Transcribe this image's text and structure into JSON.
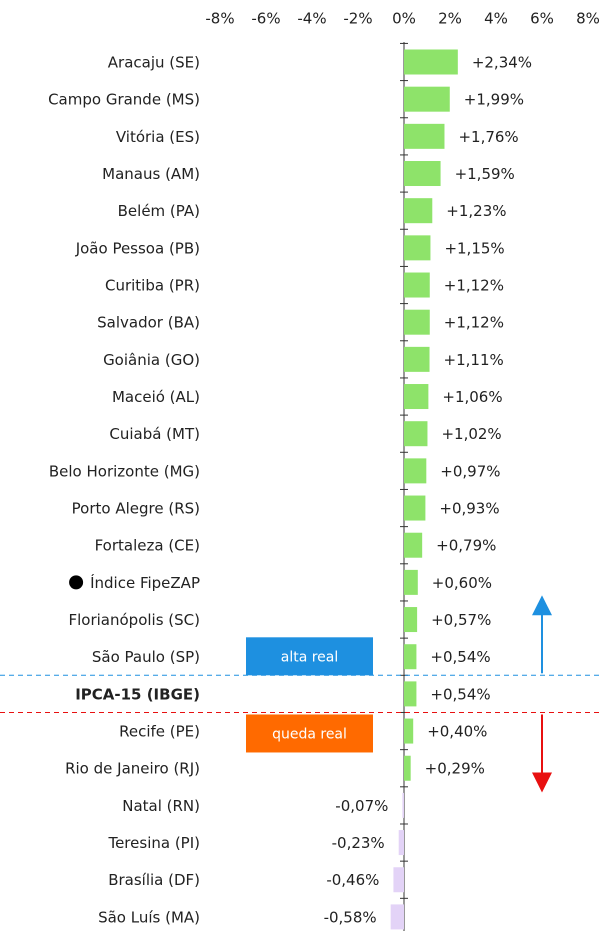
{
  "chart_data": {
    "type": "bar",
    "categories": [
      "Aracaju (SE)",
      "Campo Grande (MS)",
      "Vitória (ES)",
      "Manaus (AM)",
      "Belém (PA)",
      "João Pessoa (PB)",
      "Curitiba (PR)",
      "Salvador (BA)",
      "Goiânia (GO)",
      "Maceió (AL)",
      "Cuiabá (MT)",
      "Belo Horizonte (MG)",
      "Porto Alegre (RS)",
      "Fortaleza (CE)",
      "Índice FipeZAP",
      "Florianópolis (SC)",
      "São Paulo (SP)",
      "IPCA-15 (IBGE)",
      "Recife (PE)",
      "Rio de Janeiro (RJ)",
      "Natal (RN)",
      "Teresina (PI)",
      "Brasília (DF)",
      "São Luís (MA)"
    ],
    "values": [
      2.34,
      1.99,
      1.76,
      1.59,
      1.23,
      1.15,
      1.12,
      1.12,
      1.11,
      1.06,
      1.02,
      0.97,
      0.93,
      0.79,
      0.6,
      0.57,
      0.54,
      0.54,
      0.4,
      0.29,
      -0.07,
      -0.23,
      -0.46,
      -0.58
    ],
    "value_labels": [
      "+2,34%",
      "+1,99%",
      "+1,76%",
      "+1,59%",
      "+1,23%",
      "+1,15%",
      "+1,12%",
      "+1,12%",
      "+1,11%",
      "+1,06%",
      "+1,02%",
      "+0,97%",
      "+0,93%",
      "+0,79%",
      "+0,60%",
      "+0,57%",
      "+0,54%",
      "+0,54%",
      "+0,40%",
      "+0,29%",
      "-0,07%",
      "-0,23%",
      "-0,46%",
      "-0,58%"
    ],
    "positive_color": "#8ee36a",
    "negative_color": "#e3d3f7",
    "bold_categories": [
      17
    ],
    "marker_categories": [
      14
    ],
    "xlim": [
      -8,
      8
    ],
    "xticks": [
      {
        "value": -8,
        "label": "-8%"
      },
      {
        "value": -6,
        "label": "-6%"
      },
      {
        "value": -4,
        "label": "-4%"
      },
      {
        "value": -2,
        "label": "-2%"
      },
      {
        "value": 0,
        "label": "0%"
      },
      {
        "value": 2,
        "label": "2%"
      },
      {
        "value": 4,
        "label": "4%"
      },
      {
        "value": 6,
        "label": "6%"
      },
      {
        "value": 8,
        "label": "8%"
      }
    ],
    "annotations": [
      {
        "text": "alta real",
        "color": "#1e90e0"
      },
      {
        "text": "queda real",
        "color": "#ff6a00"
      }
    ]
  }
}
